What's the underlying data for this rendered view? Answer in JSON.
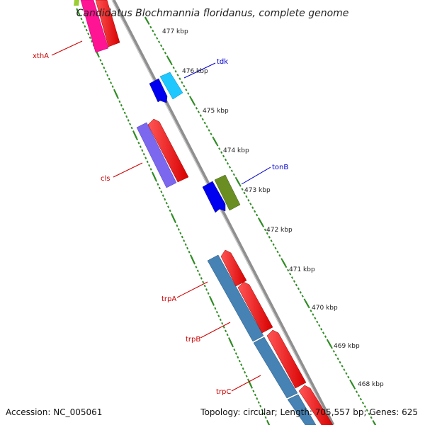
{
  "title": "Candidatus Blochmannia floridanus, complete genome",
  "accession": "Accession: NC_005061",
  "summary": "Topology: circular; Length: 705,557 bp; Genes: 625",
  "colors": {
    "backbone": "#8a8a8a",
    "ticks": "#2e8b22",
    "label_reverse": "#cc0000",
    "label_forward": "#0000cc"
  },
  "kbp_marks": [
    {
      "label": "477 kbp"
    },
    {
      "label": "476 kbp"
    },
    {
      "label": "475 kbp"
    },
    {
      "label": "474 kbp"
    },
    {
      "label": "473 kbp"
    },
    {
      "label": "472 kbp"
    },
    {
      "label": "471 kbp"
    },
    {
      "label": "470 kbp"
    },
    {
      "label": "469 kbp"
    },
    {
      "label": "468 kbp"
    }
  ],
  "genes": [
    {
      "name": "xthA",
      "strand": "reverse",
      "color": "#ff1493"
    },
    {
      "name": "tdk",
      "strand": "forward",
      "color": "#1ec8ff"
    },
    {
      "name": "cls",
      "strand": "reverse",
      "color": "#7b68ee"
    },
    {
      "name": "tonB",
      "strand": "forward",
      "color": "#6b8e23"
    },
    {
      "name": "trpA",
      "strand": "reverse",
      "color": "#4682b4"
    },
    {
      "name": "trpB",
      "strand": "reverse",
      "color": "#4682b4"
    },
    {
      "name": "trpC",
      "strand": "reverse",
      "color": "#4682b4"
    }
  ]
}
